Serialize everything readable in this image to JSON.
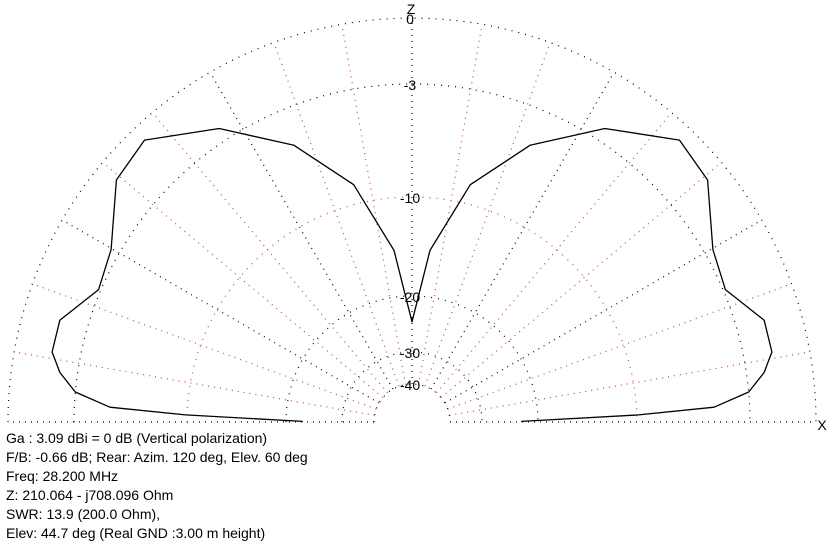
{
  "chart_data": {
    "type": "polar",
    "zlabel": "Z",
    "xlabel": "X",
    "rticks": [
      0,
      -3,
      -10,
      -20,
      -30,
      -40
    ],
    "color": "#000000",
    "x": [
      0.3,
      1.8,
      2.8,
      5.1,
      8,
      11,
      16.1,
      22.9,
      29.8,
      39.3,
      46.5,
      56.7,
      66.9,
      76.2,
      84,
      90,
      96,
      103.8,
      113.1,
      123.3,
      133.5,
      140.7,
      150.2,
      157.1,
      163.9,
      169,
      172,
      174.9,
      177.2,
      178.2,
      179.7
    ],
    "values": [
      -23,
      -9.9,
      -5.2,
      -3.0,
      -2.2,
      -1.7,
      -1.7,
      -2.9,
      -2.6,
      -1.0,
      -0.7,
      -2.4,
      -5.3,
      -8.8,
      -15.3,
      -24.6,
      -15.3,
      -8.8,
      -5.3,
      -2.4,
      -0.7,
      -1.0,
      -2.6,
      -2.9,
      -1.7,
      -1.7,
      -2.2,
      -3.0,
      -5.2,
      -9.9,
      -23
    ],
    "info": [
      "Ga : 3.09 dBi = 0 dB  (Vertical polarization)",
      "F/B: -0.66 dB; Rear: Azim. 120 deg,  Elev. 60 deg",
      "Freq: 28.200 MHz",
      "Z: 210.064 - j708.096 Ohm",
      "SWR: 13.9 (200.0 Ohm),",
      "Elev: 44.7 deg (Real GND  :3.00 m height)"
    ]
  }
}
